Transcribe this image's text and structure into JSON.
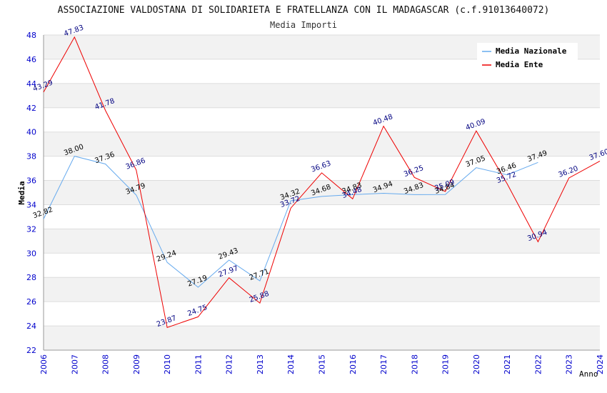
{
  "chart_data": {
    "type": "line",
    "title": "ASSOCIAZIONE VALDOSTANA DI SOLIDARIETA E FRATELLANZA CON IL MADAGASCAR (c.f.91013640072)",
    "subtitle": "Media Importi",
    "xlabel": "Anno",
    "ylabel": "Media",
    "ylim": [
      22,
      48
    ],
    "yticks": [
      "22",
      "24",
      "26",
      "28",
      "30",
      "32",
      "34",
      "36",
      "38",
      "40",
      "42",
      "44",
      "46",
      "48"
    ],
    "categories": [
      "2006",
      "2007",
      "2008",
      "2009",
      "2010",
      "2011",
      "2012",
      "2013",
      "2014",
      "2015",
      "2016",
      "2017",
      "2018",
      "2019",
      "2020",
      "2021",
      "2022",
      "2023",
      "2024"
    ],
    "grid": true,
    "legend_position": "top-right",
    "series": [
      {
        "name": "Media Nazionale",
        "color": "#66aaee",
        "values": [
          32.82,
          38.0,
          37.36,
          34.79,
          29.24,
          27.19,
          29.43,
          27.71,
          34.32,
          34.68,
          34.83,
          34.94,
          34.83,
          34.84,
          37.05,
          36.46,
          37.49,
          null,
          null
        ],
        "labels": [
          "32.82",
          "38.00",
          "37.36",
          "34.79",
          "29.24",
          "27.19",
          "29.43",
          "27.71",
          "34.32",
          "34.68",
          "34.83",
          "34.94",
          "34.83",
          "34.84",
          "37.05",
          "36.46",
          "37.49",
          null,
          null
        ]
      },
      {
        "name": "Media Ente",
        "color": "#ee0000",
        "values": [
          43.29,
          47.83,
          41.78,
          36.86,
          23.87,
          24.75,
          27.97,
          25.88,
          33.72,
          36.63,
          34.48,
          40.48,
          36.25,
          35.09,
          40.09,
          35.72,
          30.94,
          36.2,
          37.6
        ],
        "labels": [
          "43.29",
          "47.83",
          "41.78",
          "36.86",
          "23.87",
          "24.75",
          "27.97",
          "25.88",
          "33.72",
          "36.63",
          "34.48",
          "40.48",
          "36.25",
          "35.09",
          "40.09",
          "35.72",
          "30.94",
          "36.20",
          "37.60"
        ]
      }
    ]
  }
}
